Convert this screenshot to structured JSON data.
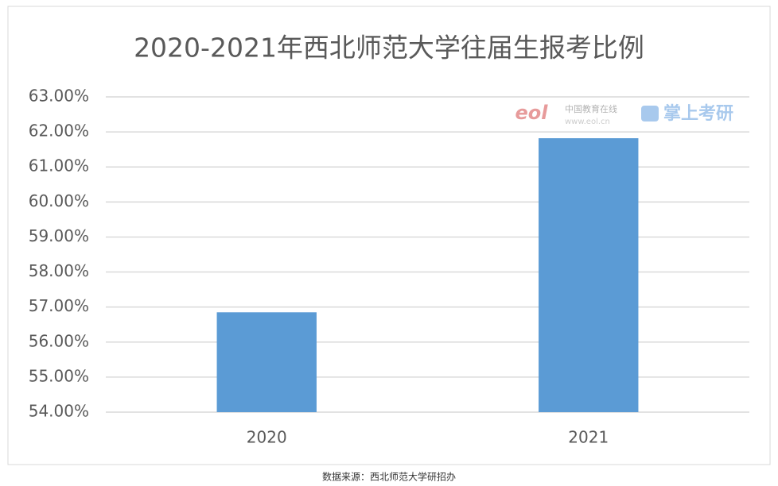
{
  "chart_data": {
    "type": "bar",
    "title": "2020-2021年西北师范大学往届生报考比例",
    "categories": [
      "2020",
      "2021"
    ],
    "values": [
      56.85,
      61.82
    ],
    "color": "#5b9bd5",
    "ylim": [
      54,
      63
    ],
    "yticks": [
      {
        "value": 54,
        "label": "54.00%"
      },
      {
        "value": 55,
        "label": "55.00%"
      },
      {
        "value": 56,
        "label": "56.00%"
      },
      {
        "value": 57,
        "label": "57.00%"
      },
      {
        "value": 58,
        "label": "58.00%"
      },
      {
        "value": 59,
        "label": "59.00%"
      },
      {
        "value": 60,
        "label": "60.00%"
      },
      {
        "value": 61,
        "label": "61.00%"
      },
      {
        "value": 62,
        "label": "62.00%"
      },
      {
        "value": 63,
        "label": "63.00%"
      }
    ],
    "grid": true
  },
  "watermark": {
    "logo": "eol",
    "site_name": "中国教育在线",
    "site_url": "www.eol.cn",
    "app": "掌上考研"
  },
  "source": "数据来源：西北师范大学研招办"
}
